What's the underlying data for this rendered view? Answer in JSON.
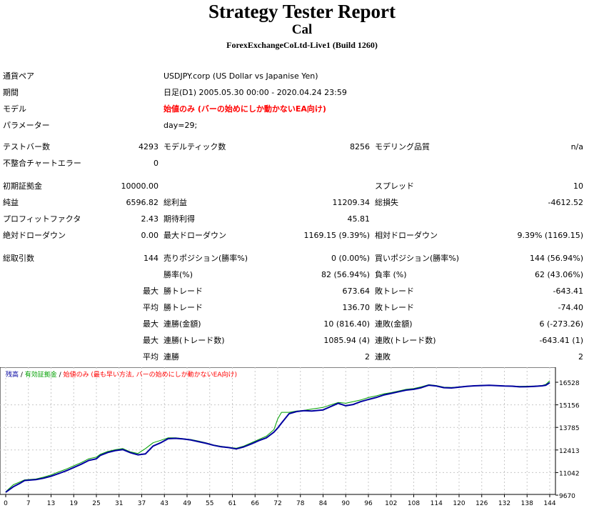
{
  "header": {
    "title": "Strategy Tester Report",
    "subtitle": "Cal",
    "server": "ForexExchangeCoLtd-Live1 (Build 1260)"
  },
  "info": {
    "symbol_label": "通貨ペア",
    "symbol_value": "USDJPY.corp (US Dollar vs Japanise Yen)",
    "period_label": "期間",
    "period_value": "日足(D1) 2005.05.30 00:00 - 2020.04.24 23:59",
    "model_label": "モデル",
    "model_value": "始値のみ (バーの始めにしか動かないEA向け)",
    "params_label": "パラメーター",
    "params_value": "day=29;"
  },
  "stats": {
    "bars_label": "テストバー数",
    "bars_value": "4293",
    "ticks_label": "モデルティック数",
    "ticks_value": "8256",
    "quality_label": "モデリング品質",
    "quality_value": "n/a",
    "mismatch_label": "不整合チャートエラー",
    "mismatch_value": "0",
    "deposit_label": "初期証拠金",
    "deposit_value": "10000.00",
    "spread_label": "スプレッド",
    "spread_value": "10",
    "net_label": "純益",
    "net_value": "6596.82",
    "gross_profit_label": "総利益",
    "gross_profit_value": "11209.34",
    "gross_loss_label": "総損失",
    "gross_loss_value": "-4612.52",
    "pf_label": "プロフィットファクタ",
    "pf_value": "2.43",
    "expected_label": "期待利得",
    "expected_value": "45.81",
    "abs_dd_label": "絶対ドローダウン",
    "abs_dd_value": "0.00",
    "max_dd_label": "最大ドローダウン",
    "max_dd_value": "1169.15 (9.39%)",
    "rel_dd_label": "相対ドローダウン",
    "rel_dd_value": "9.39% (1169.15)",
    "total_trades_label": "総取引数",
    "total_trades_value": "144",
    "short_label": "売りポジション(勝率%)",
    "short_value": "0 (0.00%)",
    "long_label": "買いポジション(勝率%)",
    "long_value": "144 (56.94%)",
    "win_rate_label": "勝率(%)",
    "win_rate_value": "82 (56.94%)",
    "loss_rate_label": "負率 (%)",
    "loss_rate_value": "62 (43.06%)",
    "max_prefix": "最大",
    "avg_prefix": "平均",
    "largest_win_label": "勝トレード",
    "largest_win_value": "673.64",
    "largest_loss_label": "敗トレード",
    "largest_loss_value": "-643.41",
    "avg_win_label": "勝トレード",
    "avg_win_value": "136.70",
    "avg_loss_label": "敗トレード",
    "avg_loss_value": "-74.40",
    "cons_wins_label": "連勝(金額)",
    "cons_wins_value": "10 (816.40)",
    "cons_losses_label": "連敗(金額)",
    "cons_losses_value": "6 (-273.26)",
    "cons_profit_label": "連勝(トレード数)",
    "cons_profit_value": "1085.94 (4)",
    "cons_loss_label": "連敗(トレード数)",
    "cons_loss_value": "-643.41 (1)",
    "avg_cons_wins_label": "連勝",
    "avg_cons_wins_value": "2",
    "avg_cons_losses_label": "連敗",
    "avg_cons_losses_value": "2"
  },
  "chart_data": {
    "type": "line",
    "legend": {
      "balance": "残高",
      "sep1": " / ",
      "equity": "有効証拠金",
      "sep2": " / ",
      "model": "始値のみ (最も早い方法, バーの始めにしか動かないEA向け)"
    },
    "x_ticks": [
      "0",
      "7",
      "13",
      "19",
      "25",
      "31",
      "37",
      "43",
      "49",
      "55",
      "61",
      "66",
      "72",
      "78",
      "84",
      "90",
      "96",
      "102",
      "108",
      "114",
      "120",
      "126",
      "132",
      "138",
      "144"
    ],
    "y_ticks": [
      "16528",
      "15156",
      "13785",
      "12413",
      "11042",
      "9670"
    ],
    "ylim": [
      9670,
      16528
    ],
    "xlim": [
      0,
      144
    ],
    "grid": true,
    "colors": {
      "balance": "#0000a0",
      "equity": "#00a000",
      "background": "#ffffff",
      "grid": "#c8c8c8"
    },
    "series": [
      {
        "name": "残高",
        "x": [
          0,
          2,
          4,
          5,
          8,
          10,
          12,
          14,
          16,
          18,
          20,
          22,
          24,
          25,
          27,
          29,
          31,
          33,
          35,
          37,
          39,
          41,
          43,
          45,
          47,
          49,
          51,
          53,
          55,
          57,
          59,
          61,
          63,
          65,
          67,
          69,
          71,
          72,
          73,
          75,
          77,
          79,
          81,
          84,
          86,
          88,
          90,
          92,
          94,
          96,
          98,
          100,
          102,
          104,
          106,
          108,
          110,
          112,
          114,
          116,
          118,
          120,
          122,
          124,
          126,
          128,
          130,
          132,
          134,
          136,
          138,
          140,
          142,
          143,
          144
        ],
        "y": [
          9850,
          10180,
          10420,
          10560,
          10610,
          10700,
          10820,
          10980,
          11150,
          11350,
          11550,
          11780,
          11880,
          12080,
          12260,
          12380,
          12440,
          12250,
          12120,
          12180,
          12650,
          12850,
          13100,
          13120,
          13080,
          13020,
          12920,
          12820,
          12700,
          12610,
          12560,
          12480,
          12600,
          12780,
          12980,
          13150,
          13500,
          13750,
          14050,
          14620,
          14750,
          14800,
          14780,
          14850,
          15050,
          15250,
          15100,
          15180,
          15350,
          15480,
          15600,
          15750,
          15850,
          15950,
          16050,
          16100,
          16200,
          16350,
          16300,
          16200,
          16180,
          16230,
          16280,
          16310,
          16330,
          16340,
          16320,
          16300,
          16290,
          16250,
          16260,
          16280,
          16310,
          16350,
          16500
        ]
      },
      {
        "name": "有効証拠金",
        "x": [
          0,
          2,
          4,
          5,
          8,
          10,
          12,
          14,
          16,
          18,
          20,
          22,
          24,
          25,
          27,
          29,
          31,
          33,
          35,
          37,
          39,
          41,
          43,
          45,
          47,
          49,
          51,
          53,
          55,
          57,
          59,
          61,
          63,
          65,
          67,
          69,
          71,
          72,
          73,
          75,
          77,
          79,
          81,
          84,
          86,
          88,
          90,
          92,
          94,
          96,
          98,
          100,
          102,
          104,
          106,
          108,
          110,
          112,
          114,
          116,
          118,
          120,
          122,
          124,
          126,
          128,
          130,
          132,
          134,
          136,
          138,
          140,
          142,
          143,
          144
        ],
        "y": [
          9880,
          10300,
          10500,
          10600,
          10650,
          10760,
          10900,
          11080,
          11250,
          11450,
          11650,
          11880,
          11980,
          12150,
          12320,
          12430,
          12500,
          12300,
          12200,
          12500,
          12850,
          13000,
          13150,
          13150,
          13100,
          13050,
          12960,
          12850,
          12720,
          12640,
          12580,
          12520,
          12650,
          12850,
          13050,
          13250,
          13650,
          14300,
          14700,
          14700,
          14780,
          14820,
          14900,
          15000,
          15150,
          15300,
          15250,
          15350,
          15450,
          15600,
          15700,
          15820,
          15900,
          16000,
          16100,
          16150,
          16250,
          16380,
          16330,
          16230,
          16210,
          16250,
          16290,
          16320,
          16340,
          16350,
          16330,
          16310,
          16300,
          16280,
          16290,
          16300,
          16330,
          16400,
          16620
        ]
      }
    ]
  }
}
